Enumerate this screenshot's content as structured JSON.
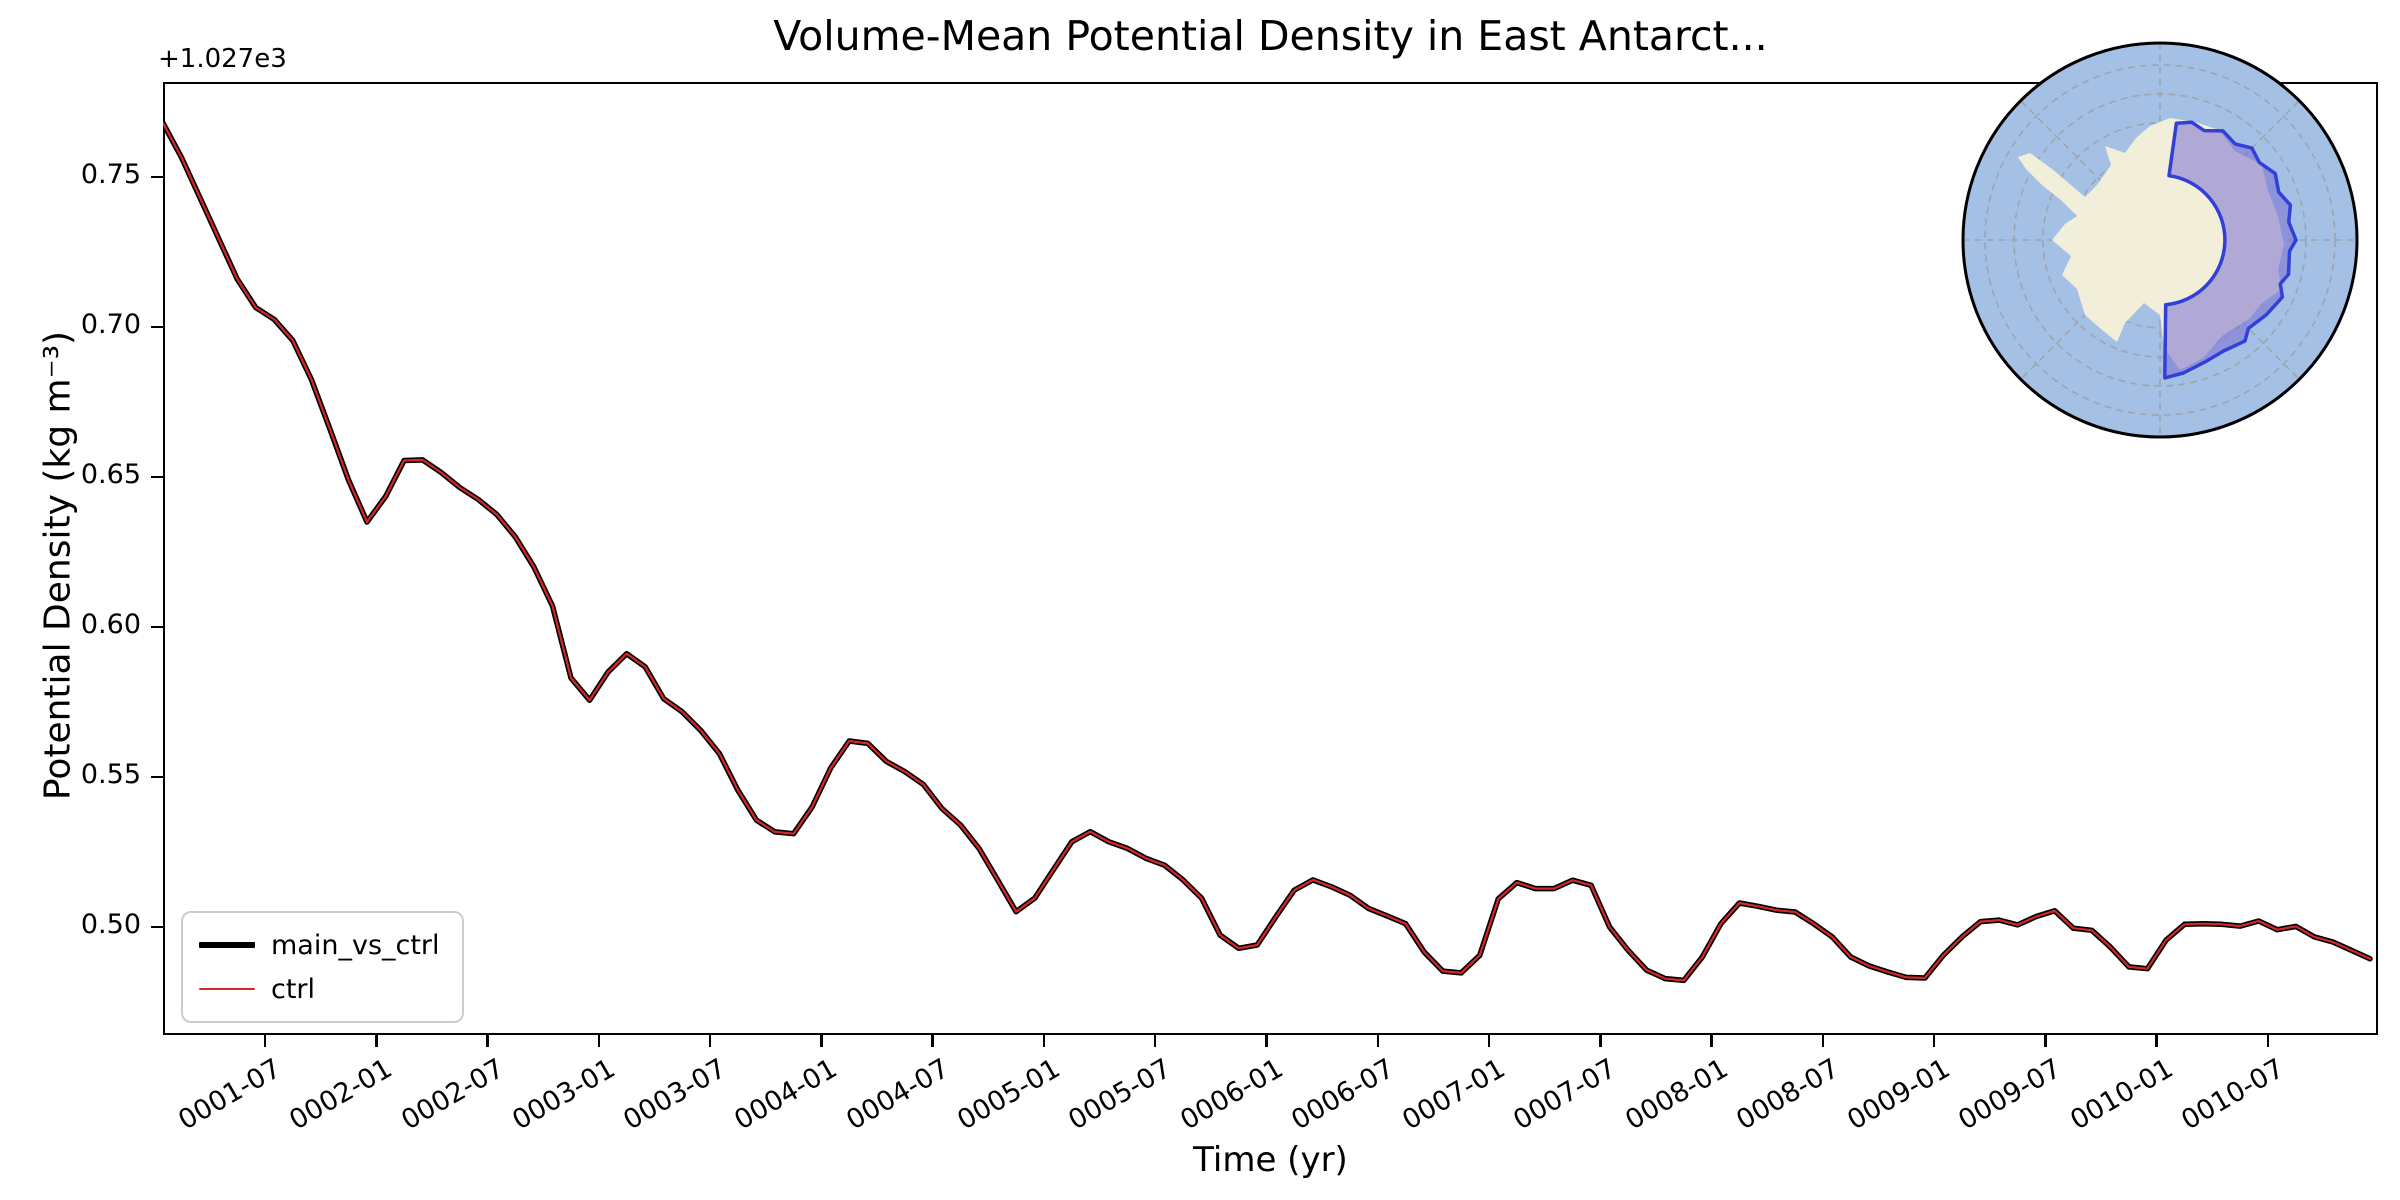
{
  "figure": {
    "title": "Volume-Mean Potential Density in East Antarct...",
    "offset_text": "+1.027e3",
    "xlabel": "Time (yr)",
    "ylabel": "Potential Density (kg m⁻³)"
  },
  "legend": {
    "position": "lower left",
    "items": [
      {
        "label": "main_vs_ctrl",
        "color": "#000000",
        "line_weight": 6
      },
      {
        "label": "ctrl",
        "color": "#d62728",
        "line_weight": 2.5
      }
    ]
  },
  "axis": {
    "yticks": [
      "0.75",
      "0.70",
      "0.65",
      "0.60",
      "0.55",
      "0.50"
    ],
    "xticks": [
      "0001-07",
      "0002-01",
      "0002-07",
      "0003-01",
      "0003-07",
      "0004-01",
      "0004-07",
      "0005-01",
      "0005-07",
      "0006-01",
      "0006-07",
      "0007-01",
      "0007-07",
      "0008-01",
      "0008-07",
      "0009-01",
      "0009-07",
      "0010-01",
      "0010-07"
    ]
  },
  "colors": {
    "main_line": "#000000",
    "ctrl_line": "#d62728",
    "spine": "#000000",
    "legend_border": "#cccccc",
    "map_ocean": "#a5c0e5",
    "map_land": "#f1efda",
    "map_region_fill": "#8d85d8",
    "map_region_border": "#3340d8",
    "map_graticule": "#9aa2ac"
  },
  "inset_map": {
    "name": "south-polar-stereographic-inset",
    "highlighted_region": "East Antarctica sector"
  },
  "chart_data": {
    "type": "line",
    "title": "Volume-Mean Potential Density in East Antarct...",
    "xlabel": "Time (yr)",
    "ylabel": "Potential Density (kg m⁻³)",
    "y_offset_label": "+1.027e3",
    "y_offset": 1027,
    "ylim": [
      0.464,
      0.782
    ],
    "xlim": [
      "0001-01",
      "0010-12"
    ],
    "grid": false,
    "legend_position": "lower left",
    "x": [
      "0001-01",
      "0001-02",
      "0001-03",
      "0001-04",
      "0001-05",
      "0001-06",
      "0001-07",
      "0001-08",
      "0001-09",
      "0001-10",
      "0001-11",
      "0001-12",
      "0002-01",
      "0002-02",
      "0002-03",
      "0002-04",
      "0002-05",
      "0002-06",
      "0002-07",
      "0002-08",
      "0002-09",
      "0002-10",
      "0002-11",
      "0002-12",
      "0003-01",
      "0003-02",
      "0003-03",
      "0003-04",
      "0003-05",
      "0003-06",
      "0003-07",
      "0003-08",
      "0003-09",
      "0003-10",
      "0003-11",
      "0003-12",
      "0004-01",
      "0004-02",
      "0004-03",
      "0004-04",
      "0004-05",
      "0004-06",
      "0004-07",
      "0004-08",
      "0004-09",
      "0004-10",
      "0004-11",
      "0004-12",
      "0005-01",
      "0005-02",
      "0005-03",
      "0005-04",
      "0005-05",
      "0005-06",
      "0005-07",
      "0005-08",
      "0005-09",
      "0005-10",
      "0005-11",
      "0005-12",
      "0006-01",
      "0006-02",
      "0006-03",
      "0006-04",
      "0006-05",
      "0006-06",
      "0006-07",
      "0006-08",
      "0006-09",
      "0006-10",
      "0006-11",
      "0006-12",
      "0007-01",
      "0007-02",
      "0007-03",
      "0007-04",
      "0007-05",
      "0007-06",
      "0007-07",
      "0007-08",
      "0007-09",
      "0007-10",
      "0007-11",
      "0007-12",
      "0008-01",
      "0008-02",
      "0008-03",
      "0008-04",
      "0008-05",
      "0008-06",
      "0008-07",
      "0008-08",
      "0008-09",
      "0008-10",
      "0008-11",
      "0008-12",
      "0009-01",
      "0009-02",
      "0009-03",
      "0009-04",
      "0009-05",
      "0009-06",
      "0009-07",
      "0009-08",
      "0009-09",
      "0009-10",
      "0009-11",
      "0009-12",
      "0010-01",
      "0010-02",
      "0010-03",
      "0010-04",
      "0010-05",
      "0010-06",
      "0010-07",
      "0010-08",
      "0010-09",
      "0010-10",
      "0010-11",
      "0010-12"
    ],
    "series": [
      {
        "name": "main_vs_ctrl",
        "color": "#000000",
        "width": 5.5,
        "values": [
          0.768,
          0.7565,
          0.743,
          0.7295,
          0.716,
          0.7065,
          0.7025,
          0.6955,
          0.6825,
          0.666,
          0.649,
          0.635,
          0.6435,
          0.6555,
          0.6557,
          0.6515,
          0.6465,
          0.6425,
          0.6375,
          0.63,
          0.62,
          0.607,
          0.583,
          0.5756,
          0.585,
          0.5911,
          0.5867,
          0.5761,
          0.5717,
          0.5655,
          0.5578,
          0.5456,
          0.5356,
          0.5317,
          0.5311,
          0.54,
          0.553,
          0.562,
          0.5612,
          0.5552,
          0.5518,
          0.5475,
          0.5395,
          0.534,
          0.5262,
          0.5157,
          0.5051,
          0.5096,
          0.519,
          0.5284,
          0.5318,
          0.5284,
          0.5262,
          0.5229,
          0.5206,
          0.5157,
          0.5096,
          0.4973,
          0.4929,
          0.494,
          0.5034,
          0.5123,
          0.5157,
          0.5134,
          0.5106,
          0.5062,
          0.5037,
          0.5011,
          0.4917,
          0.4853,
          0.4847,
          0.4906,
          0.5094,
          0.5148,
          0.5128,
          0.5128,
          0.5156,
          0.5139,
          0.5,
          0.4922,
          0.4856,
          0.4828,
          0.4822,
          0.49,
          0.5011,
          0.508,
          0.5069,
          0.5056,
          0.505,
          0.5011,
          0.4967,
          0.49,
          0.487,
          0.485,
          0.4832,
          0.483,
          0.4906,
          0.4967,
          0.5018,
          0.5023,
          0.5007,
          0.5035,
          0.5054,
          0.4996,
          0.4989,
          0.4933,
          0.4867,
          0.4861,
          0.4956,
          0.5009,
          0.5011,
          0.5009,
          0.5003,
          0.502,
          0.4991,
          0.5002,
          0.4967,
          0.495,
          0.4922,
          0.4894
        ]
      },
      {
        "name": "ctrl",
        "color": "#d62728",
        "width": 2.2,
        "values": [
          0.768,
          0.7565,
          0.743,
          0.7295,
          0.716,
          0.7065,
          0.7025,
          0.6955,
          0.6825,
          0.666,
          0.649,
          0.635,
          0.6435,
          0.6555,
          0.6557,
          0.6515,
          0.6465,
          0.6425,
          0.6375,
          0.63,
          0.62,
          0.607,
          0.583,
          0.5756,
          0.585,
          0.5911,
          0.5867,
          0.5761,
          0.5717,
          0.5655,
          0.5578,
          0.5456,
          0.5356,
          0.5317,
          0.5311,
          0.54,
          0.553,
          0.562,
          0.5612,
          0.5552,
          0.5518,
          0.5475,
          0.5395,
          0.534,
          0.5262,
          0.5157,
          0.5051,
          0.5096,
          0.519,
          0.5284,
          0.5318,
          0.5284,
          0.5262,
          0.5229,
          0.5206,
          0.5157,
          0.5096,
          0.4973,
          0.4929,
          0.494,
          0.5034,
          0.5123,
          0.5157,
          0.5134,
          0.5106,
          0.5062,
          0.5037,
          0.5011,
          0.4917,
          0.4853,
          0.4847,
          0.4906,
          0.5094,
          0.5148,
          0.5128,
          0.5128,
          0.5156,
          0.5139,
          0.5,
          0.4922,
          0.4856,
          0.4828,
          0.4822,
          0.49,
          0.5011,
          0.508,
          0.5069,
          0.5056,
          0.505,
          0.5011,
          0.4967,
          0.49,
          0.487,
          0.485,
          0.4832,
          0.483,
          0.4906,
          0.4967,
          0.5018,
          0.5023,
          0.5007,
          0.5035,
          0.5054,
          0.4996,
          0.4989,
          0.4933,
          0.4867,
          0.4861,
          0.4956,
          0.5009,
          0.5011,
          0.5009,
          0.5003,
          0.502,
          0.4991,
          0.5002,
          0.4967,
          0.495,
          0.4922,
          0.4894
        ]
      }
    ]
  }
}
